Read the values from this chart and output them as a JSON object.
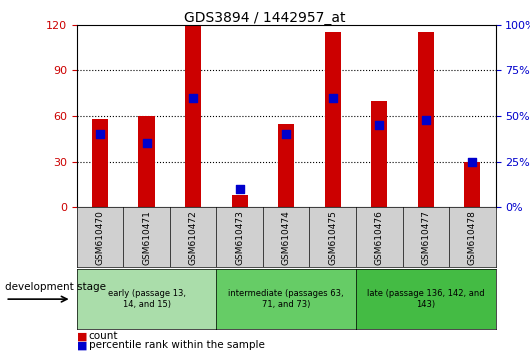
{
  "title": "GDS3894 / 1442957_at",
  "samples": [
    "GSM610470",
    "GSM610471",
    "GSM610472",
    "GSM610473",
    "GSM610474",
    "GSM610475",
    "GSM610476",
    "GSM610477",
    "GSM610478"
  ],
  "count": [
    58,
    60,
    120,
    8,
    55,
    115,
    70,
    115,
    30
  ],
  "percentile": [
    40,
    35,
    60,
    10,
    40,
    60,
    45,
    48,
    25
  ],
  "ylim_left": [
    0,
    120
  ],
  "ylim_right": [
    0,
    100
  ],
  "yticks_left": [
    0,
    30,
    60,
    90,
    120
  ],
  "yticks_right": [
    0,
    25,
    50,
    75,
    100
  ],
  "bar_color": "#CC0000",
  "percentile_color": "#0000CC",
  "bar_width": 0.35,
  "percentile_marker_size": 36,
  "stage_groups": [
    {
      "label": "early (passage 13,\n14, and 15)",
      "samples": [
        0,
        2
      ],
      "color": "#AADDAA"
    },
    {
      "label": "intermediate (passages 63,\n71, and 73)",
      "samples": [
        3,
        5
      ],
      "color": "#66CC66"
    },
    {
      "label": "late (passage 136, 142, and\n143)",
      "samples": [
        6,
        8
      ],
      "color": "#44BB44"
    }
  ],
  "development_stage_label": "development stage",
  "legend_count_color": "#CC0000",
  "legend_percentile_color": "#0000CC"
}
